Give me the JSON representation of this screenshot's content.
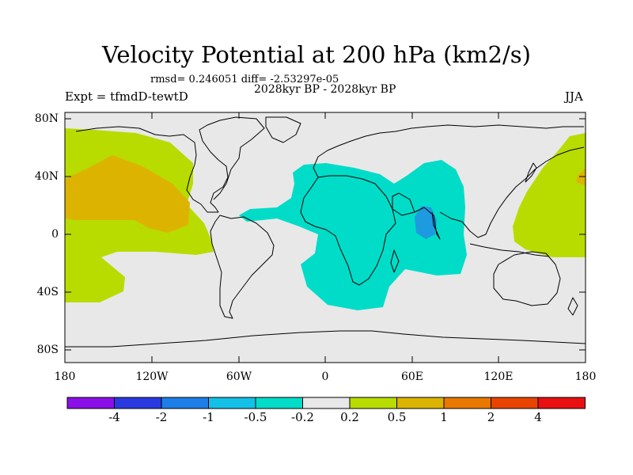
{
  "title": "Velocity Potential at 200 hPa (km2/s)",
  "stats_line": "rmsd= 0.246051 diff= -2.53297e-05",
  "periods": "2028kyr BP - 2028kyr BP",
  "experiment": "Expt = tfmdD-tewtD",
  "season": "JJA",
  "y_axis_labels": [
    "80N",
    "40N",
    "0",
    "40S",
    "80S"
  ],
  "x_axis_labels": [
    "180",
    "120W",
    "60W",
    "0",
    "60E",
    "120E",
    "180"
  ],
  "colorbar": {
    "levels": [
      "-4",
      "-2",
      "-1",
      "-0.5",
      "-0.2",
      "0.2",
      "0.5",
      "1",
      "2",
      "4"
    ],
    "colors": [
      "#8a10e8",
      "#2a3ae0",
      "#1e7ee8",
      "#14c0e8",
      "#00dcc8",
      "#e8e8e8",
      "#b8dc00",
      "#dcb400",
      "#e87800",
      "#e84400",
      "#e81010"
    ]
  },
  "colors": {
    "land_background": "#e8e8e8",
    "positive_weak": "#b8dc00",
    "positive_mid": "#dcb400",
    "negative_weak": "#00dcc8",
    "negative_mid": "#1e9ae0"
  }
}
